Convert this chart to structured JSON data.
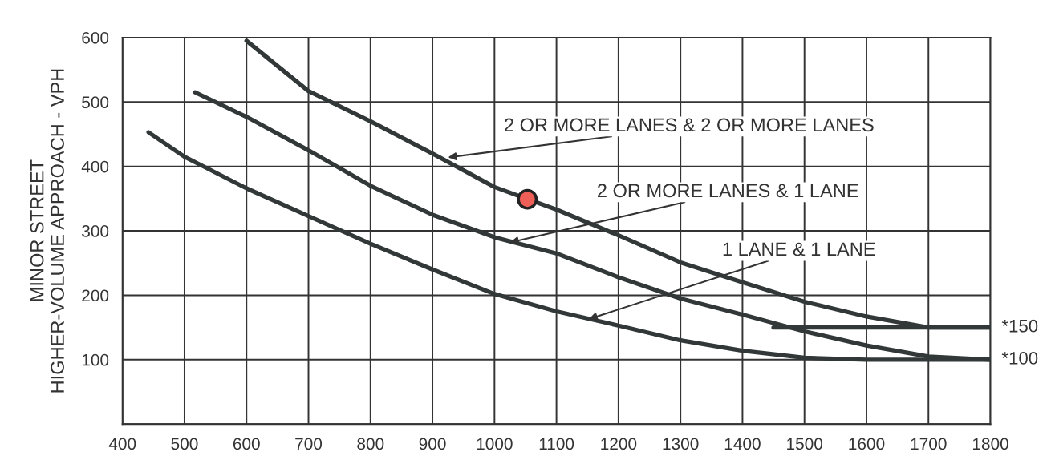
{
  "chart_data": {
    "type": "line",
    "ylabel": "MINOR STREET\nHIGHER-VOLUME APPROACH - VPH",
    "xlim": [
      400,
      1800
    ],
    "xticks": [
      400,
      500,
      600,
      700,
      800,
      900,
      1000,
      1100,
      1200,
      1300,
      1400,
      1500,
      1600,
      1700,
      1800
    ],
    "ylim": [
      0,
      600
    ],
    "yticks": [
      {
        "value": 0,
        "label": null
      },
      100,
      200,
      300,
      400,
      500,
      600
    ],
    "grid": true,
    "line_style": "solid",
    "marker": "none",
    "series": [
      {
        "color": "#323838",
        "x": [
          600,
          700,
          800,
          900,
          1000,
          1100,
          1200,
          1300,
          1400,
          1500,
          1600,
          1700,
          1800
        ],
        "values": [
          595,
          517,
          470,
          420,
          368,
          333,
          293,
          251,
          220,
          190,
          167,
          150,
          150
        ]
      },
      {
        "color": "#323838",
        "x": [
          517,
          600,
          700,
          800,
          900,
          1000,
          1100,
          1200,
          1300,
          1400,
          1500,
          1600,
          1700,
          1800
        ],
        "values": [
          515,
          477,
          425,
          370,
          325,
          290,
          265,
          228,
          195,
          170,
          144,
          122,
          105,
          100
        ]
      },
      {
        "color": "#323838",
        "x": [
          442,
          500,
          600,
          700,
          800,
          900,
          1000,
          1100,
          1200,
          1300,
          1400,
          1500,
          1600,
          1700,
          1800
        ],
        "values": [
          453,
          415,
          366,
          323,
          280,
          240,
          202,
          175,
          153,
          130,
          114,
          103,
          100,
          100,
          100
        ]
      },
      {
        "color": "#323838",
        "x": [
          1450,
          1800
        ],
        "values": [
          150,
          150
        ]
      },
      {
        "type": "scatter",
        "marker": "circle",
        "color": "#ee5f58",
        "x": [
          1053
        ],
        "values": [
          349
        ]
      }
    ],
    "annotations": [
      {
        "text": "2 OR MORE LANES & 2 OR MORE LANES",
        "x": 925,
        "y": 414
      },
      {
        "text": "2 OR MORE LANES & 1 LANE",
        "x": 1025,
        "y": 282
      },
      {
        "text": "1 LANE & 1 LANE",
        "x": 1152,
        "y": 163
      },
      {
        "text": "*150",
        "x": 1800,
        "y": 150
      },
      {
        "text": "*100",
        "x": 1800,
        "y": 100
      }
    ]
  }
}
